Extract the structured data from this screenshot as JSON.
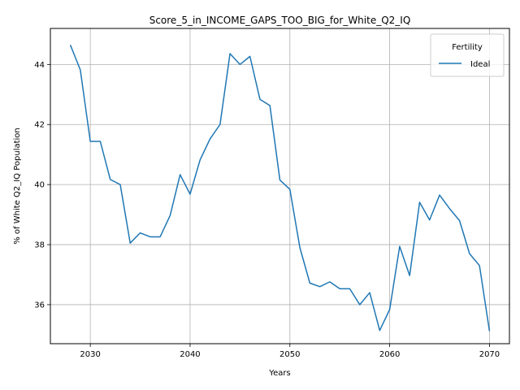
{
  "chart_data": {
    "type": "line",
    "title": "Score_5_in_INCOME_GAPS_TOO_BIG_for_White_Q2_IQ",
    "xlabel": "Years",
    "ylabel": "% of White Q2_IQ Population",
    "xlim": [
      2026,
      2072
    ],
    "ylim": [
      34.7,
      45.2
    ],
    "xticks": [
      2030,
      2040,
      2050,
      2060,
      2070
    ],
    "yticks": [
      36,
      38,
      40,
      42,
      44
    ],
    "grid": true,
    "legend": {
      "title": "Fertility",
      "placement": "top-right"
    },
    "series": [
      {
        "name": "Ideal",
        "color": "#1f77b4",
        "x": [
          2028,
          2029,
          2030,
          2031,
          2032,
          2033,
          2034,
          2035,
          2036,
          2037,
          2038,
          2039,
          2040,
          2041,
          2042,
          2043,
          2044,
          2045,
          2046,
          2047,
          2048,
          2049,
          2050,
          2051,
          2052,
          2053,
          2054,
          2055,
          2056,
          2057,
          2058,
          2059,
          2060,
          2061,
          2062,
          2063,
          2064,
          2065,
          2066,
          2067,
          2068,
          2069,
          2070
        ],
        "y": [
          44.65,
          43.82,
          41.44,
          41.44,
          40.17,
          40.0,
          38.05,
          38.39,
          38.26,
          38.26,
          38.97,
          40.33,
          39.68,
          40.82,
          41.52,
          42.0,
          44.36,
          44.0,
          44.27,
          42.84,
          42.63,
          40.15,
          39.84,
          37.9,
          36.72,
          36.6,
          36.76,
          36.53,
          36.53,
          36.0,
          36.4,
          35.14,
          35.84,
          37.94,
          36.97,
          39.41,
          38.82,
          39.65,
          39.2,
          38.8,
          37.7,
          37.3,
          35.12
        ]
      }
    ]
  }
}
